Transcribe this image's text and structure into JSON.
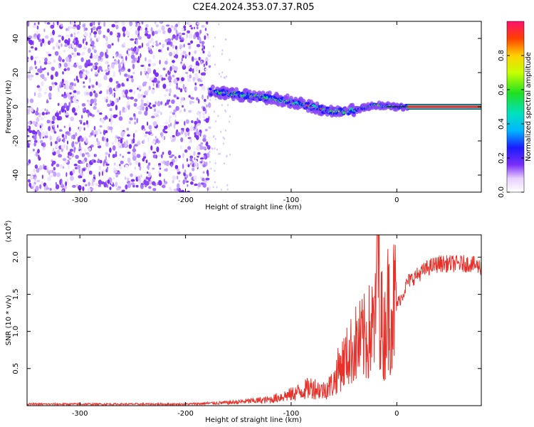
{
  "figure_title": "C2E4.2024.353.07.37.R05",
  "colors": {
    "snr_line": "#e8312a",
    "spectrogram_noise": "#7b2ff7",
    "spectrogram_signal": "#00c8ff",
    "signal_peak": "#ff2060"
  },
  "chart_data": [
    {
      "type": "heatmap",
      "title": "",
      "xlabel": "Height of straight line (km)",
      "ylabel": "Frequency (Hz)",
      "xlim": [
        -350,
        80
      ],
      "ylim": [
        -50,
        50
      ],
      "xticks": [
        "-300",
        "-200",
        "-100",
        "0"
      ],
      "yticks": [
        "-40",
        "-20",
        "0",
        "20",
        "40"
      ],
      "grid": false,
      "noise_region_km": [
        -350,
        -177
      ],
      "signal_track": [
        {
          "x": -177,
          "freq": 9
        },
        {
          "x": -150,
          "freq": 7
        },
        {
          "x": -120,
          "freq": 5
        },
        {
          "x": -100,
          "freq": 3
        },
        {
          "x": -80,
          "freq": 0
        },
        {
          "x": -60,
          "freq": -3
        },
        {
          "x": -40,
          "freq": -2
        },
        {
          "x": -20,
          "freq": 1
        },
        {
          "x": 0,
          "freq": 0
        },
        {
          "x": 80,
          "freq": 0
        }
      ],
      "colorbar": {
        "label": "Normalized spectral amplitude",
        "range": [
          0.0,
          1.0
        ],
        "ticks": [
          "0.0",
          "0.2",
          "0.4",
          "0.6",
          "0.8"
        ]
      }
    },
    {
      "type": "line",
      "title": "",
      "xlabel": "Height of straight line (km)",
      "ylabel": "SNR (10 * v/v)",
      "y_multiplier": "(x10",
      "y_multiplier_exp": "4",
      "y_multiplier_close": ")",
      "xlim": [
        -350,
        80
      ],
      "ylim": [
        0,
        2.3
      ],
      "xticks": [
        "-300",
        "-200",
        "-100",
        "0"
      ],
      "yticks": [
        "0.5",
        "1.0",
        "1.5",
        "2.0"
      ],
      "grid": false,
      "series": [
        {
          "x": [
            -350,
            -300,
            -250,
            -200,
            -180,
            -160,
            -140,
            -120,
            -110,
            -100,
            -90,
            -80,
            -70,
            -60,
            -55,
            -50,
            -45,
            -40,
            -35,
            -30,
            -25,
            -20,
            -18,
            -15,
            -12,
            -10,
            -5,
            0,
            5,
            10,
            20,
            30,
            40,
            50,
            60,
            70,
            80
          ],
          "values": [
            0.02,
            0.02,
            0.02,
            0.02,
            0.03,
            0.04,
            0.06,
            0.08,
            0.12,
            0.15,
            0.2,
            0.25,
            0.2,
            0.3,
            0.5,
            0.6,
            0.7,
            0.8,
            0.85,
            0.9,
            1.0,
            1.1,
            2.3,
            1.2,
            0.9,
            1.3,
            1.35,
            1.4,
            1.5,
            1.7,
            1.8,
            1.9,
            1.95,
            1.95,
            1.95,
            1.95,
            1.9
          ]
        }
      ]
    }
  ]
}
